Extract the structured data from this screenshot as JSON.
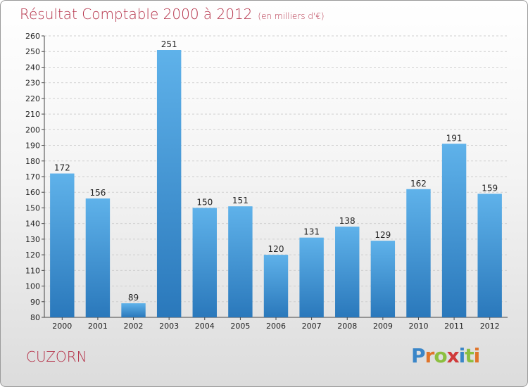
{
  "chart_data": {
    "type": "bar",
    "title": "Résultat Comptable 2000 à 2012",
    "subtitle": "(en milliers d'€)",
    "categories": [
      "2000",
      "2001",
      "2002",
      "2003",
      "2004",
      "2005",
      "2006",
      "2007",
      "2008",
      "2009",
      "2010",
      "2011",
      "2012"
    ],
    "values": [
      172,
      156,
      89,
      251,
      150,
      151,
      120,
      131,
      138,
      129,
      162,
      191,
      159
    ],
    "ylim": [
      80,
      260
    ],
    "yticks": [
      80,
      90,
      100,
      110,
      120,
      130,
      140,
      150,
      160,
      170,
      180,
      190,
      200,
      210,
      220,
      230,
      240,
      250,
      260
    ],
    "grid": true,
    "bar_color": "#4aa3e0"
  },
  "footer": {
    "commune": "CUZORN",
    "logo_letters": [
      {
        "ch": "P",
        "color": "#3a86c8"
      },
      {
        "ch": "r",
        "color": "#e0742a"
      },
      {
        "ch": "o",
        "color": "#8cbf3f"
      },
      {
        "ch": "x",
        "color": "#d03a3a"
      },
      {
        "ch": "i",
        "color": "#3a86c8"
      },
      {
        "ch": "t",
        "color": "#8cbf3f"
      },
      {
        "ch": "i",
        "color": "#e0742a"
      }
    ]
  }
}
